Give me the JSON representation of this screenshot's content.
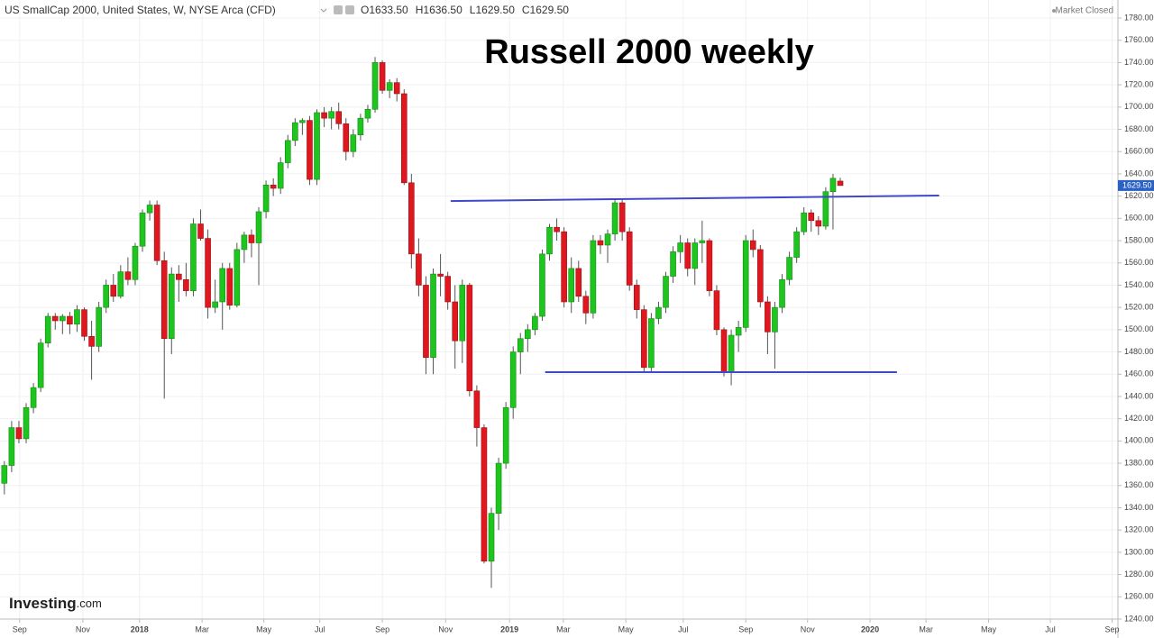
{
  "chart_data": {
    "type": "candlestick",
    "instrument": "US SmallCap 2000, United States, W, NYSE Arca (CFD)",
    "header_values": [
      {
        "key": "O",
        "text": "1633.50"
      },
      {
        "key": "H",
        "text": "1636.50"
      },
      {
        "key": "L",
        "text": "1629.50"
      },
      {
        "key": "C",
        "text": "1629.50"
      }
    ],
    "status": "Market Closed",
    "title": "Russell 2000 weekly",
    "brand": "Investing",
    "brand_suffix": ".com",
    "last_price_label": "1629.50",
    "up_color": "#1ec51e",
    "down_color": "#e0171f",
    "trendline_color": "#4049c9",
    "grid": true,
    "x": [
      0,
      1,
      2,
      3,
      4,
      5,
      6,
      7,
      8,
      9,
      10,
      11,
      12,
      13,
      14,
      15,
      16,
      17,
      18,
      19,
      20,
      21,
      22,
      23,
      24,
      25,
      26,
      27,
      28,
      29,
      30,
      31,
      32,
      33,
      34,
      35,
      36,
      37,
      38,
      39,
      40,
      41,
      42,
      43,
      44,
      45,
      46,
      47,
      48,
      49,
      50,
      51,
      52,
      53,
      54,
      55,
      56,
      57,
      58,
      59,
      60,
      61,
      62,
      63,
      64,
      65,
      66,
      67,
      68,
      69,
      70,
      71,
      72,
      73,
      74,
      75,
      76,
      77,
      78,
      79,
      80,
      81,
      82,
      83,
      84,
      85,
      86,
      87,
      88,
      89,
      90,
      91,
      92,
      93,
      94,
      95,
      96,
      97,
      98,
      99,
      100,
      101,
      102,
      103,
      104,
      105,
      106,
      107,
      108,
      109,
      110,
      111,
      112,
      113,
      114,
      115
    ],
    "open": [
      1362,
      1378,
      1412,
      1402,
      1430,
      1448,
      1488,
      1512,
      1508,
      1512,
      1505,
      1518,
      1494,
      1485,
      1520,
      1540,
      1530,
      1552,
      1545,
      1575,
      1605,
      1612,
      1562,
      1492,
      1550,
      1545,
      1535,
      1595,
      1582,
      1520,
      1525,
      1555,
      1522,
      1572,
      1585,
      1578,
      1606,
      1630,
      1627,
      1650,
      1670,
      1686,
      1688,
      1635,
      1695,
      1690,
      1696,
      1685,
      1660,
      1675,
      1690,
      1698,
      1740,
      1715,
      1722,
      1712,
      1632,
      1568,
      1540,
      1475,
      1550,
      1548,
      1525,
      1490,
      1540,
      1445,
      1412,
      1292,
      1335,
      1380,
      1430,
      1480,
      1492,
      1500,
      1512,
      1568,
      1592,
      1588,
      1525,
      1555,
      1530,
      1515,
      1580,
      1576,
      1586,
      1614,
      1588,
      1540,
      1518,
      1466,
      1510,
      1520,
      1548,
      1570,
      1578,
      1555,
      1578,
      1580,
      1535,
      1500,
      1462,
      1495,
      1502,
      1580,
      1572,
      1525,
      1498,
      1520,
      1545,
      1565,
      1588,
      1605,
      1598,
      1593,
      1624,
      1633.5
    ],
    "high": [
      1382,
      1418,
      1418,
      1434,
      1452,
      1492,
      1515,
      1515,
      1514,
      1516,
      1522,
      1520,
      1508,
      1525,
      1545,
      1550,
      1558,
      1565,
      1578,
      1608,
      1616,
      1616,
      1570,
      1556,
      1558,
      1560,
      1600,
      1608,
      1590,
      1545,
      1560,
      1560,
      1578,
      1588,
      1590,
      1610,
      1634,
      1636,
      1655,
      1675,
      1690,
      1690,
      1692,
      1698,
      1700,
      1700,
      1704,
      1690,
      1680,
      1694,
      1702,
      1745,
      1742,
      1725,
      1726,
      1716,
      1640,
      1582,
      1548,
      1555,
      1568,
      1552,
      1540,
      1545,
      1542,
      1450,
      1415,
      1340,
      1385,
      1435,
      1485,
      1497,
      1505,
      1515,
      1572,
      1595,
      1600,
      1592,
      1565,
      1562,
      1535,
      1585,
      1585,
      1590,
      1618,
      1618,
      1592,
      1545,
      1522,
      1515,
      1525,
      1552,
      1575,
      1585,
      1582,
      1582,
      1598,
      1582,
      1540,
      1502,
      1500,
      1508,
      1585,
      1590,
      1576,
      1530,
      1525,
      1550,
      1570,
      1592,
      1610,
      1608,
      1602,
      1628,
      1640,
      1636.5
    ],
    "low": [
      1352,
      1372,
      1398,
      1398,
      1425,
      1444,
      1484,
      1500,
      1496,
      1496,
      1498,
      1490,
      1455,
      1480,
      1515,
      1525,
      1528,
      1540,
      1540,
      1570,
      1598,
      1558,
      1438,
      1478,
      1525,
      1530,
      1530,
      1580,
      1510,
      1515,
      1500,
      1518,
      1520,
      1560,
      1565,
      1540,
      1600,
      1620,
      1622,
      1645,
      1665,
      1675,
      1630,
      1630,
      1682,
      1680,
      1680,
      1652,
      1655,
      1670,
      1686,
      1695,
      1712,
      1708,
      1705,
      1630,
      1555,
      1530,
      1460,
      1460,
      1530,
      1518,
      1465,
      1470,
      1440,
      1395,
      1290,
      1268,
      1320,
      1375,
      1420,
      1460,
      1480,
      1495,
      1508,
      1562,
      1580,
      1520,
      1515,
      1525,
      1505,
      1510,
      1568,
      1560,
      1580,
      1580,
      1535,
      1510,
      1462,
      1462,
      1505,
      1515,
      1542,
      1560,
      1548,
      1540,
      1560,
      1530,
      1495,
      1458,
      1450,
      1480,
      1498,
      1565,
      1520,
      1478,
      1465,
      1515,
      1540,
      1560,
      1585,
      1588,
      1585,
      1590,
      1590,
      1629.5
    ],
    "close": [
      1378,
      1412,
      1402,
      1430,
      1448,
      1488,
      1512,
      1508,
      1512,
      1505,
      1518,
      1494,
      1485,
      1520,
      1540,
      1530,
      1552,
      1545,
      1575,
      1605,
      1612,
      1562,
      1492,
      1550,
      1545,
      1535,
      1595,
      1582,
      1520,
      1525,
      1555,
      1522,
      1572,
      1585,
      1578,
      1606,
      1630,
      1627,
      1650,
      1670,
      1686,
      1688,
      1635,
      1695,
      1690,
      1696,
      1685,
      1660,
      1675,
      1690,
      1698,
      1740,
      1715,
      1722,
      1712,
      1632,
      1568,
      1540,
      1475,
      1550,
      1548,
      1525,
      1490,
      1540,
      1445,
      1412,
      1292,
      1335,
      1380,
      1430,
      1480,
      1492,
      1500,
      1512,
      1568,
      1592,
      1588,
      1525,
      1555,
      1530,
      1515,
      1580,
      1576,
      1586,
      1614,
      1588,
      1540,
      1518,
      1466,
      1510,
      1520,
      1548,
      1570,
      1578,
      1555,
      1578,
      1580,
      1535,
      1500,
      1462,
      1495,
      1502,
      1580,
      1572,
      1525,
      1498,
      1520,
      1545,
      1565,
      1588,
      1605,
      1598,
      1593,
      1624,
      1636,
      1629.5
    ],
    "trendlines": [
      {
        "x": [
          61.4,
          128.6
        ],
        "y": [
          1615.6,
          1620.5
        ]
      },
      {
        "x": [
          74.4,
          122.8
        ],
        "y": [
          1461.8,
          1461.8
        ]
      }
    ],
    "xlim": [
      -0.6,
      153.2
    ],
    "xticks": [
      {
        "value": 2.1,
        "label": "Sep"
      },
      {
        "value": 10.8,
        "label": "Nov"
      },
      {
        "value": 18.6,
        "label": "2018"
      },
      {
        "value": 27.2,
        "label": "Mar"
      },
      {
        "value": 35.7,
        "label": "May"
      },
      {
        "value": 43.4,
        "label": "Jul"
      },
      {
        "value": 52,
        "label": "Sep"
      },
      {
        "value": 60.7,
        "label": "Nov"
      },
      {
        "value": 69.5,
        "label": "2019"
      },
      {
        "value": 76.9,
        "label": "Mar"
      },
      {
        "value": 85.5,
        "label": "May"
      },
      {
        "value": 93.4,
        "label": "Jul"
      },
      {
        "value": 102,
        "label": "Sep"
      },
      {
        "value": 110.5,
        "label": "Nov"
      },
      {
        "value": 119.1,
        "label": "2020"
      },
      {
        "value": 126.8,
        "label": "Mar"
      },
      {
        "value": 135.4,
        "label": "May"
      },
      {
        "value": 143.9,
        "label": "Jul"
      },
      {
        "value": 152.4,
        "label": "Sep"
      }
    ],
    "ylim": [
      1240,
      1780
    ],
    "yticks": [
      {
        "value": 1240,
        "label": "1240.00"
      },
      {
        "value": 1260,
        "label": "1260.00"
      },
      {
        "value": 1280,
        "label": "1280.00"
      },
      {
        "value": 1300,
        "label": "1300.00"
      },
      {
        "value": 1320,
        "label": "1320.00"
      },
      {
        "value": 1340,
        "label": "1340.00"
      },
      {
        "value": 1360,
        "label": "1360.00"
      },
      {
        "value": 1380,
        "label": "1380.00"
      },
      {
        "value": 1400,
        "label": "1400.00"
      },
      {
        "value": 1420,
        "label": "1420.00"
      },
      {
        "value": 1440,
        "label": "1440.00"
      },
      {
        "value": 1460,
        "label": "1460.00"
      },
      {
        "value": 1480,
        "label": "1480.00"
      },
      {
        "value": 1500,
        "label": "1500.00"
      },
      {
        "value": 1520,
        "label": "1520.00"
      },
      {
        "value": 1540,
        "label": "1540.00"
      },
      {
        "value": 1560,
        "label": "1560.00"
      },
      {
        "value": 1580,
        "label": "1580.00"
      },
      {
        "value": 1600,
        "label": "1600.00"
      },
      {
        "value": 1620,
        "label": "1620.00"
      },
      {
        "value": 1640,
        "label": "1640.00"
      },
      {
        "value": 1660,
        "label": "1660.00"
      },
      {
        "value": 1680,
        "label": "1680.00"
      },
      {
        "value": 1700,
        "label": "1700.00"
      },
      {
        "value": 1720,
        "label": "1720.00"
      },
      {
        "value": 1740,
        "label": "1740.00"
      },
      {
        "value": 1760,
        "label": "1760.00"
      },
      {
        "value": 1780,
        "label": "1780.00"
      }
    ]
  }
}
